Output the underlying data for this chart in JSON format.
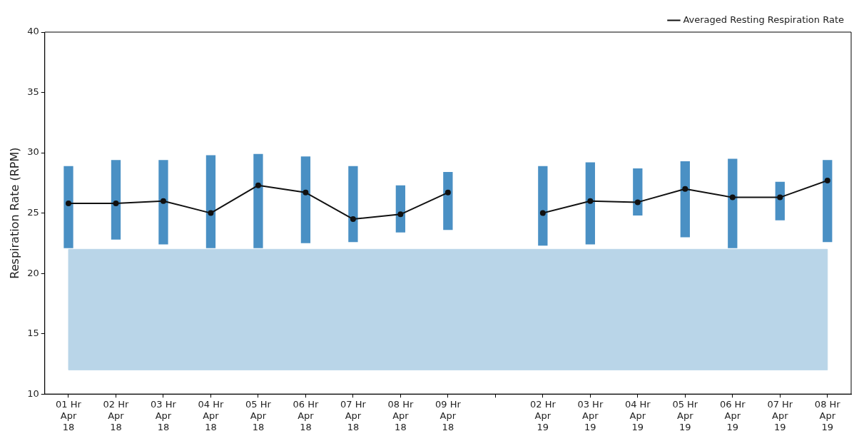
{
  "chart_data": {
    "type": "bar",
    "ylabel": "Respiration Rate (RPM)",
    "categories": [
      "01 Hr\nApr\n18",
      "02 Hr\nApr\n18",
      "03 Hr\nApr\n18",
      "04 Hr\nApr\n18",
      "05 Hr\nApr\n18",
      "06 Hr\nApr\n18",
      "07 Hr\nApr\n18",
      "08 Hr\nApr\n18",
      "09 Hr\nApr\n18",
      null,
      "02 Hr\nApr\n19",
      "03 Hr\nApr\n19",
      "04 Hr\nApr\n19",
      "05 Hr\nApr\n19",
      "06 Hr\nApr\n19",
      "07 Hr\nApr\n19",
      "08 Hr\nApr\n19"
    ],
    "series": [
      {
        "color": "#4a90c4",
        "base": [
          22.1,
          22.8,
          22.4,
          22.1,
          22.1,
          22.5,
          22.6,
          23.4,
          23.6,
          null,
          22.3,
          22.4,
          24.8,
          23.0,
          22.1,
          24.4,
          22.6
        ],
        "values": [
          6.8,
          6.6,
          7.0,
          7.7,
          7.8,
          7.2,
          6.3,
          3.9,
          4.8,
          null,
          6.6,
          6.8,
          3.9,
          6.3,
          7.4,
          3.2,
          6.8
        ]
      },
      {
        "type": "line",
        "name": "Averaged Resting Respiration Rate",
        "color": "#111111",
        "marker": "circle",
        "values": [
          25.8,
          25.8,
          26.0,
          25.0,
          27.3,
          26.7,
          24.5,
          24.9,
          26.7,
          null,
          25.0,
          26.0,
          25.9,
          27.0,
          26.3,
          26.3,
          27.7
        ]
      }
    ],
    "bands": [
      {
        "axis": "y",
        "from": 12,
        "to": 22,
        "color": "#b9d5e8"
      }
    ],
    "ylim": [
      10,
      40
    ],
    "yticks": [
      10,
      15,
      20,
      25,
      30,
      35,
      40
    ],
    "legend": "top right",
    "grid": false
  }
}
